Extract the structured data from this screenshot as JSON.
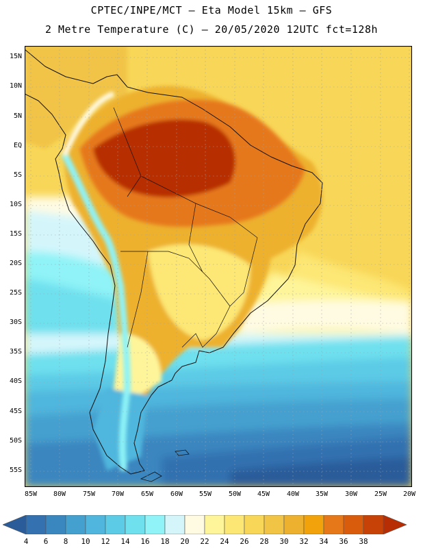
{
  "header": {
    "line1": "CPTEC/INPE/MCT –   Eta Model 15km – GFS",
    "line2": "2 Metre Temperature (C) – 20/05/2020 12UTC fct=128h"
  },
  "axes": {
    "lat_labels": [
      "15N",
      "10N",
      "5N",
      "EQ",
      "5S",
      "10S",
      "15S",
      "20S",
      "25S",
      "30S",
      "35S",
      "40S",
      "45S",
      "50S",
      "55S"
    ],
    "lon_labels": [
      "85W",
      "80W",
      "75W",
      "70W",
      "65W",
      "60W",
      "55W",
      "50W",
      "45W",
      "40W",
      "35W",
      "30W",
      "25W",
      "20W"
    ]
  },
  "colorbar": {
    "labels": [
      "4",
      "6",
      "8",
      "10",
      "12",
      "14",
      "16",
      "18",
      "20",
      "22",
      "24",
      "26",
      "28",
      "30",
      "32",
      "34",
      "36",
      "38"
    ],
    "colors": [
      "#2a5c9a",
      "#3371b0",
      "#3a86bf",
      "#44a0cf",
      "#50b6dd",
      "#5ccbe6",
      "#6ee0ee",
      "#8ff3f7",
      "#d4f6fb",
      "#fffbe2",
      "#fef59a",
      "#fde774",
      "#f8d657",
      "#f1c446",
      "#edb12f",
      "#f2a20a",
      "#e6781a",
      "#d95c0c",
      "#c64206",
      "#b72e04"
    ]
  },
  "chart_data": {
    "type": "heatmap",
    "title": "2 Metre Temperature (C)",
    "model": "Eta Model 15km – GFS",
    "run": "20/05/2020 12UTC",
    "forecast": "fct=128h",
    "units": "C",
    "lat_range": [
      -57.5,
      17
    ],
    "lon_range": [
      -86,
      -20
    ],
    "colorbar_levels": [
      4,
      6,
      8,
      10,
      12,
      14,
      16,
      18,
      20,
      22,
      24,
      26,
      28,
      30,
      32,
      34,
      36,
      38
    ]
  }
}
